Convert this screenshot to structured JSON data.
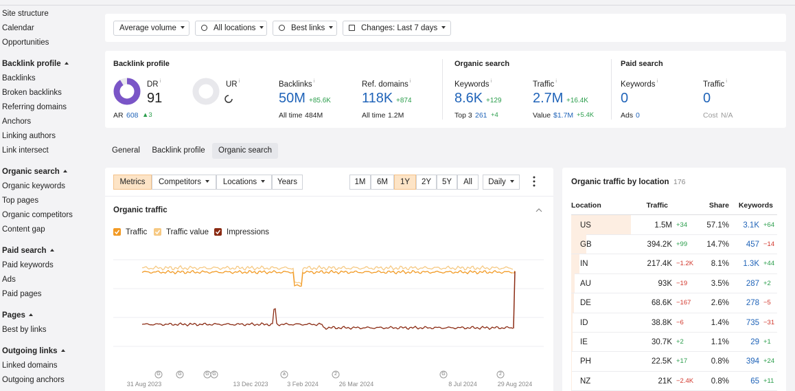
{
  "sidebar": {
    "top": [
      "Site structure",
      "Calendar",
      "Opportunities"
    ],
    "sections": [
      {
        "title": "Backlink profile",
        "items": [
          "Backlinks",
          "Broken backlinks",
          "Referring domains",
          "Anchors",
          "Linking authors",
          "Link intersect"
        ]
      },
      {
        "title": "Organic search",
        "items": [
          "Organic keywords",
          "Top pages",
          "Organic competitors",
          "Content gap"
        ]
      },
      {
        "title": "Paid search",
        "items": [
          "Paid keywords",
          "Ads",
          "Paid pages"
        ]
      },
      {
        "title": "Pages",
        "items": [
          "Best by links"
        ]
      },
      {
        "title": "Outgoing links",
        "items": [
          "Linked domains",
          "Outgoing anchors"
        ]
      }
    ]
  },
  "filters": [
    "Average volume",
    "All locations",
    "Best links",
    "Changes: Last 7 days"
  ],
  "metrics": {
    "groups": [
      {
        "title": "Backlink profile",
        "items": [
          {
            "label": "DR",
            "value": "91",
            "sub_label": "AR",
            "sub_value": "608",
            "sub_delta": "▲3"
          },
          {
            "label": "UR"
          },
          {
            "label": "Backlinks",
            "value": "50M",
            "delta": "+85.6K",
            "sub_label": "All time",
            "sub_value": "484M"
          },
          {
            "label": "Ref. domains",
            "value": "118K",
            "delta": "+874",
            "sub_label": "All time",
            "sub_value": "1.2M"
          }
        ]
      },
      {
        "title": "Organic search",
        "items": [
          {
            "label": "Keywords",
            "value": "8.6K",
            "delta": "+129",
            "sub_label": "Top 3",
            "sub_value": "261",
            "sub_delta": "+4"
          },
          {
            "label": "Traffic",
            "value": "2.7M",
            "delta": "+16.4K",
            "sub_label": "Value",
            "sub_value": "$1.7M",
            "sub_delta": "+5.4K"
          }
        ]
      },
      {
        "title": "Paid search",
        "items": [
          {
            "label": "Keywords",
            "value": "0",
            "sub_label": "Ads",
            "sub_value": "0"
          },
          {
            "label": "Traffic",
            "value": "0",
            "sub_label": "Cost",
            "sub_value": "N/A"
          }
        ]
      }
    ]
  },
  "tabs": [
    "General",
    "Backlink profile",
    "Organic search"
  ],
  "chart": {
    "controls": [
      "Metrics",
      "Competitors",
      "Locations",
      "Years"
    ],
    "ranges": [
      "1M",
      "6M",
      "1Y",
      "2Y",
      "5Y",
      "All"
    ],
    "interval": "Daily",
    "title": "Organic traffic",
    "legend": [
      {
        "name": "Traffic",
        "color": "#f29a24"
      },
      {
        "name": "Traffic value",
        "color": "#f6c983"
      },
      {
        "name": "Impressions",
        "color": "#8a2a12"
      }
    ],
    "annotations": [
      "G",
      "G",
      "G",
      "G",
      "a",
      "2",
      "G",
      "2"
    ],
    "x_labels": [
      "31 Aug 2023",
      "13 Dec 2023",
      "3 Feb 2024",
      "26 Mar 2024",
      "8 Jul 2024",
      "29 Aug 2024"
    ]
  },
  "table": {
    "title": "Organic traffic by location",
    "count": "176",
    "columns": [
      "Location",
      "Traffic",
      "Share",
      "Keywords"
    ],
    "rows": [
      [
        "US",
        "1.5M",
        "+34",
        "57.1%",
        "3.1K",
        "+64"
      ],
      [
        "GB",
        "394.2K",
        "+99",
        "14.7%",
        "457",
        "−14"
      ],
      [
        "IN",
        "217.4K",
        "−1.2K",
        "8.1%",
        "1.3K",
        "+44"
      ],
      [
        "AU",
        "93K",
        "−19",
        "3.5%",
        "287",
        "+2"
      ],
      [
        "DE",
        "68.6K",
        "−167",
        "2.6%",
        "278",
        "−5"
      ],
      [
        "ID",
        "38.8K",
        "−6",
        "1.4%",
        "735",
        "−31"
      ],
      [
        "IE",
        "30.7K",
        "+2",
        "1.1%",
        "29",
        "+1"
      ],
      [
        "PH",
        "22.5K",
        "+17",
        "0.8%",
        "394",
        "+24"
      ],
      [
        "NZ",
        "21K",
        "−2.4K",
        "0.8%",
        "65",
        "+11"
      ]
    ]
  }
}
